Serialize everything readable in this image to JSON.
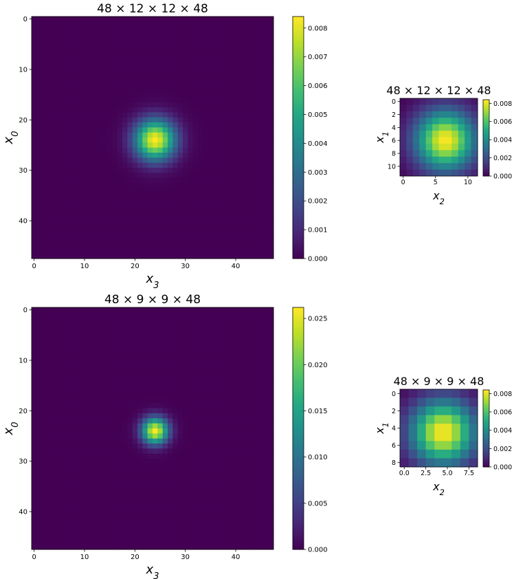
{
  "chart_data": [
    {
      "type": "heatmap",
      "title": "48 × 12 × 12 × 48",
      "xlabel": "x_3",
      "ylabel": "x_0",
      "grid_size": 48,
      "peak": [
        24,
        24
      ],
      "sigma": 2.8,
      "max_value": 0.0084,
      "xticks": [
        0,
        10,
        20,
        30,
        40
      ],
      "yticks": [
        0,
        10,
        20,
        30,
        40
      ],
      "xlim": [
        -0.5,
        47.5
      ],
      "ylim": [
        47.5,
        -0.5
      ],
      "colorbar": {
        "min": 0,
        "max": 0.0084,
        "ticks": [
          "0.000",
          "0.001",
          "0.002",
          "0.003",
          "0.004",
          "0.005",
          "0.006",
          "0.007",
          "0.008"
        ]
      },
      "colormap": "viridis"
    },
    {
      "type": "heatmap",
      "title": "48 × 12 × 12 × 48",
      "xlabel": "x_2",
      "ylabel": "x_1",
      "grid_size": 12,
      "peak": [
        6.5,
        6
      ],
      "sigma": 3.2,
      "max_value": 0.0084,
      "xticks": [
        0,
        5,
        10
      ],
      "yticks": [
        0,
        2,
        4,
        6,
        8,
        10
      ],
      "xlim": [
        -0.5,
        11.5
      ],
      "ylim": [
        11.5,
        -0.5
      ],
      "colorbar": {
        "min": 0,
        "max": 0.0084,
        "ticks": [
          "0.000",
          "0.002",
          "0.004",
          "0.006",
          "0.008"
        ]
      },
      "colormap": "viridis"
    },
    {
      "type": "heatmap",
      "title": "48 × 9 × 9 × 48",
      "xlabel": "x_3",
      "ylabel": "x_0",
      "grid_size": 48,
      "peak": [
        24,
        24
      ],
      "sigma": 1.8,
      "max_value": 0.0262,
      "xticks": [
        0,
        10,
        20,
        30,
        40
      ],
      "yticks": [
        0,
        10,
        20,
        30,
        40
      ],
      "xlim": [
        -0.5,
        47.5
      ],
      "ylim": [
        47.5,
        -0.5
      ],
      "colorbar": {
        "min": 0,
        "max": 0.0262,
        "ticks": [
          "0.000",
          "0.005",
          "0.010",
          "0.015",
          "0.020",
          "0.025"
        ]
      },
      "colormap": "viridis"
    },
    {
      "type": "heatmap",
      "title": "48 × 9 × 9 × 48",
      "xlabel": "x_2",
      "ylabel": "x_1",
      "grid_size": 9,
      "peak": [
        4.5,
        4.5
      ],
      "sigma": 2.6,
      "max_value": 0.0084,
      "xticks": [
        "0.0",
        "2.5",
        "5.0",
        "7.5"
      ],
      "xtick_values": [
        0,
        2.5,
        5,
        7.5
      ],
      "yticks": [
        0,
        2,
        4,
        6,
        8
      ],
      "xlim": [
        -0.5,
        8.5
      ],
      "ylim": [
        8.5,
        -0.5
      ],
      "colorbar": {
        "min": 0,
        "max": 0.0084,
        "ticks": [
          "0.000",
          "0.002",
          "0.004",
          "0.006",
          "0.008"
        ]
      },
      "colormap": "viridis"
    }
  ]
}
